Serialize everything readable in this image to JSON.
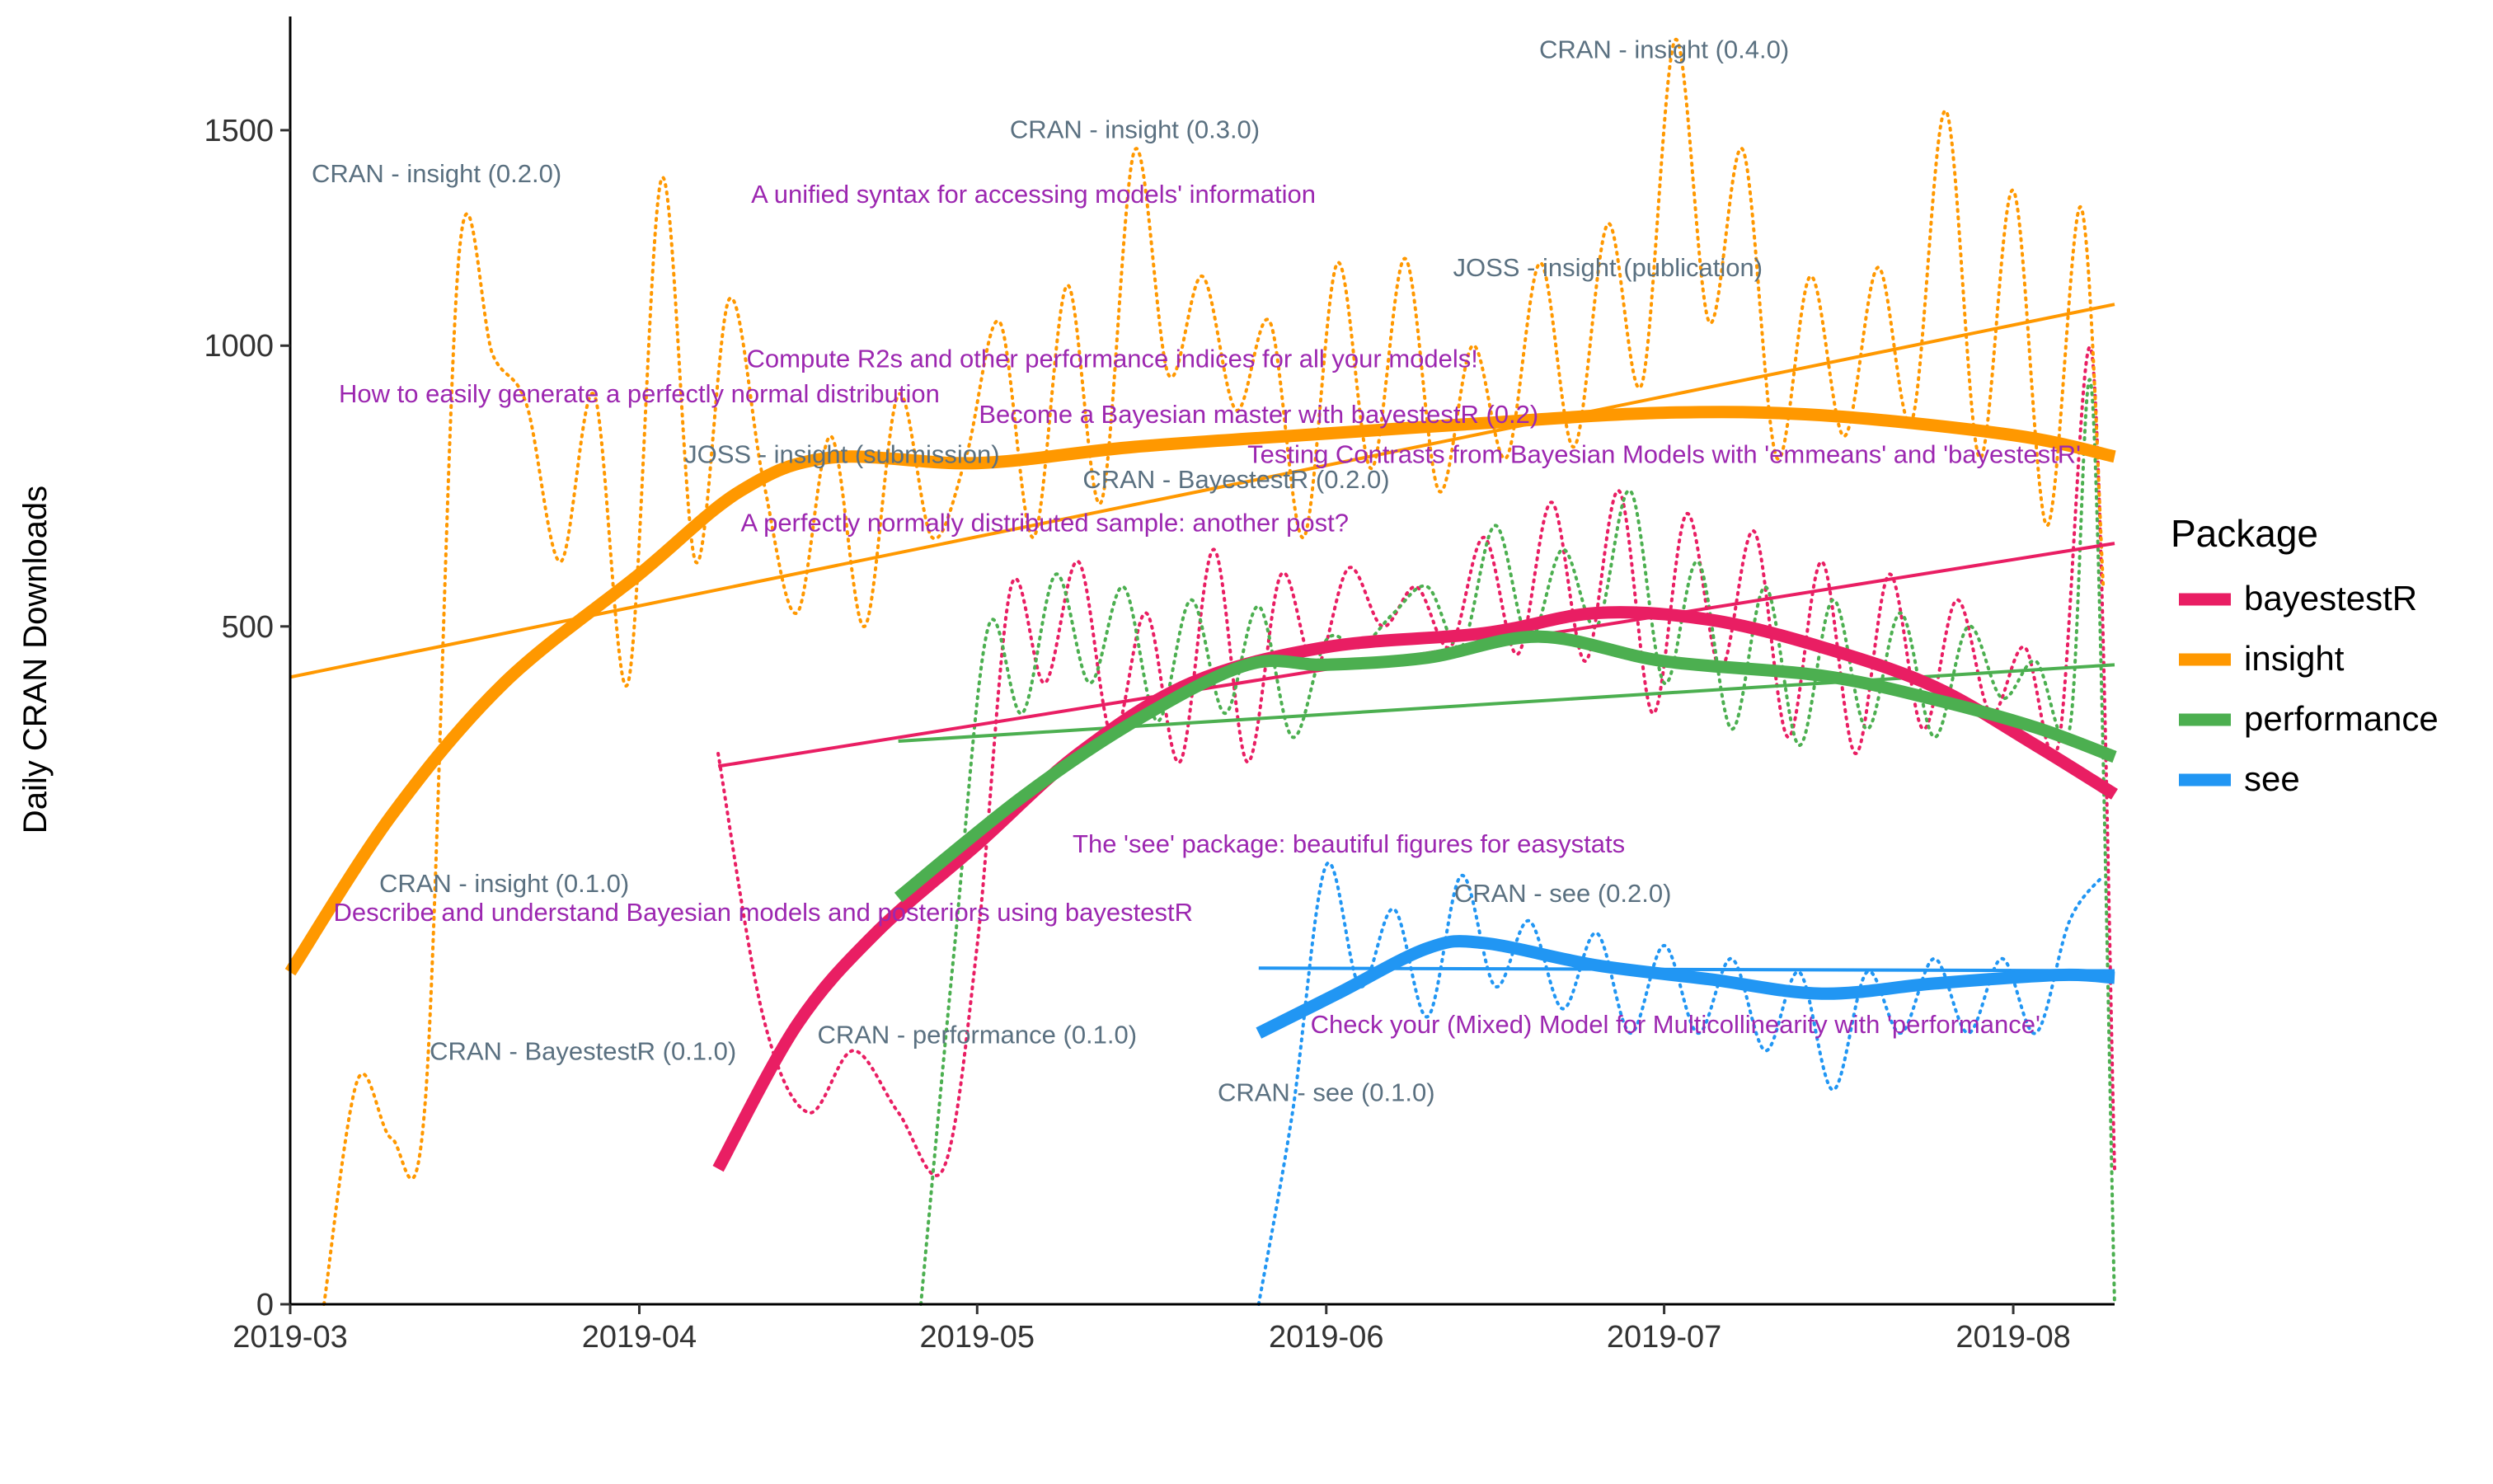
{
  "chart_data": {
    "type": "line",
    "title": "",
    "xlabel": "",
    "ylabel": "Daily CRAN Downloads",
    "x_axis": {
      "type": "date",
      "ticks": [
        "2019-03-01",
        "2019-04-01",
        "2019-05-01",
        "2019-06-01",
        "2019-07-01",
        "2019-08-01"
      ],
      "tick_labels": [
        "2019-03",
        "2019-04",
        "2019-05",
        "2019-06",
        "2019-07",
        "2019-08"
      ],
      "range": [
        "2019-03-01",
        "2019-08-10"
      ]
    },
    "y_axis": {
      "scale": "sqrt",
      "ticks": [
        0,
        500,
        1000,
        1500
      ],
      "tick_labels": [
        "0",
        "500",
        "1000",
        "1500"
      ],
      "range": [
        0,
        1800
      ]
    },
    "grid": false,
    "legend": {
      "title": "Package",
      "position": "right"
    },
    "series": [
      {
        "name": "bayestestR",
        "color": "#E91E63",
        "raw": [
          [
            "2019-04-08",
            330
          ],
          [
            "2019-04-12",
            90
          ],
          [
            "2019-04-16",
            40
          ],
          [
            "2019-04-20",
            70
          ],
          [
            "2019-04-24",
            40
          ],
          [
            "2019-04-28",
            20
          ],
          [
            "2019-05-01",
            140
          ],
          [
            "2019-05-04",
            560
          ],
          [
            "2019-05-07",
            420
          ],
          [
            "2019-05-10",
            600
          ],
          [
            "2019-05-13",
            350
          ],
          [
            "2019-05-16",
            520
          ],
          [
            "2019-05-19",
            320
          ],
          [
            "2019-05-22",
            620
          ],
          [
            "2019-05-25",
            320
          ],
          [
            "2019-05-28",
            580
          ],
          [
            "2019-05-31",
            440
          ],
          [
            "2019-06-03",
            590
          ],
          [
            "2019-06-06",
            500
          ],
          [
            "2019-06-09",
            560
          ],
          [
            "2019-06-12",
            470
          ],
          [
            "2019-06-15",
            640
          ],
          [
            "2019-06-18",
            460
          ],
          [
            "2019-06-21",
            700
          ],
          [
            "2019-06-24",
            450
          ],
          [
            "2019-06-27",
            720
          ],
          [
            "2019-06-30",
            380
          ],
          [
            "2019-07-03",
            680
          ],
          [
            "2019-07-06",
            440
          ],
          [
            "2019-07-09",
            650
          ],
          [
            "2019-07-12",
            350
          ],
          [
            "2019-07-15",
            600
          ],
          [
            "2019-07-18",
            330
          ],
          [
            "2019-07-21",
            580
          ],
          [
            "2019-07-24",
            360
          ],
          [
            "2019-07-27",
            540
          ],
          [
            "2019-07-30",
            380
          ],
          [
            "2019-08-02",
            470
          ],
          [
            "2019-08-05",
            340
          ],
          [
            "2019-08-08",
            980
          ],
          [
            "2019-08-10",
            20
          ]
        ],
        "smooth": [
          [
            "2019-04-08",
            20
          ],
          [
            "2019-04-15",
            85
          ],
          [
            "2019-04-22",
            150
          ],
          [
            "2019-05-01",
            230
          ],
          [
            "2019-05-10",
            330
          ],
          [
            "2019-05-20",
            420
          ],
          [
            "2019-06-01",
            470
          ],
          [
            "2019-06-15",
            490
          ],
          [
            "2019-06-25",
            520
          ],
          [
            "2019-07-05",
            510
          ],
          [
            "2019-07-15",
            470
          ],
          [
            "2019-07-25",
            415
          ],
          [
            "2019-08-03",
            340
          ],
          [
            "2019-08-10",
            283
          ]
        ],
        "trend": [
          [
            "2019-04-08",
            315
          ],
          [
            "2019-08-10",
            630
          ]
        ]
      },
      {
        "name": "insight",
        "color": "#FF9800",
        "raw": [
          [
            "2019-03-04",
            0
          ],
          [
            "2019-03-07",
            55
          ],
          [
            "2019-03-10",
            30
          ],
          [
            "2019-03-13",
            45
          ],
          [
            "2019-03-16",
            1200
          ],
          [
            "2019-03-19",
            980
          ],
          [
            "2019-03-22",
            880
          ],
          [
            "2019-03-25",
            600
          ],
          [
            "2019-03-28",
            900
          ],
          [
            "2019-03-31",
            420
          ],
          [
            "2019-04-03",
            1380
          ],
          [
            "2019-04-06",
            600
          ],
          [
            "2019-04-09",
            1100
          ],
          [
            "2019-04-12",
            740
          ],
          [
            "2019-04-15",
            520
          ],
          [
            "2019-04-18",
            820
          ],
          [
            "2019-04-21",
            500
          ],
          [
            "2019-04-24",
            900
          ],
          [
            "2019-04-27",
            640
          ],
          [
            "2019-04-30",
            780
          ],
          [
            "2019-05-03",
            1050
          ],
          [
            "2019-05-06",
            640
          ],
          [
            "2019-05-09",
            1130
          ],
          [
            "2019-05-12",
            700
          ],
          [
            "2019-05-15",
            1450
          ],
          [
            "2019-05-18",
            940
          ],
          [
            "2019-05-21",
            1150
          ],
          [
            "2019-05-24",
            870
          ],
          [
            "2019-05-27",
            1050
          ],
          [
            "2019-05-30",
            640
          ],
          [
            "2019-06-02",
            1180
          ],
          [
            "2019-06-05",
            760
          ],
          [
            "2019-06-08",
            1190
          ],
          [
            "2019-06-11",
            720
          ],
          [
            "2019-06-14",
            1000
          ],
          [
            "2019-06-17",
            780
          ],
          [
            "2019-06-20",
            1180
          ],
          [
            "2019-06-23",
            800
          ],
          [
            "2019-06-26",
            1270
          ],
          [
            "2019-06-29",
            920
          ],
          [
            "2019-07-02",
            1740
          ],
          [
            "2019-07-05",
            1050
          ],
          [
            "2019-07-08",
            1450
          ],
          [
            "2019-07-11",
            780
          ],
          [
            "2019-07-14",
            1150
          ],
          [
            "2019-07-17",
            820
          ],
          [
            "2019-07-20",
            1170
          ],
          [
            "2019-07-23",
            850
          ],
          [
            "2019-07-26",
            1550
          ],
          [
            "2019-07-29",
            780
          ],
          [
            "2019-08-01",
            1350
          ],
          [
            "2019-08-04",
            660
          ],
          [
            "2019-08-07",
            1310
          ],
          [
            "2019-08-09",
            560
          ]
        ],
        "smooth": [
          [
            "2019-03-01",
            120
          ],
          [
            "2019-03-10",
            260
          ],
          [
            "2019-03-20",
            420
          ],
          [
            "2019-04-01",
            580
          ],
          [
            "2019-04-10",
            720
          ],
          [
            "2019-04-18",
            780
          ],
          [
            "2019-05-01",
            770
          ],
          [
            "2019-05-15",
            800
          ],
          [
            "2019-06-01",
            825
          ],
          [
            "2019-06-15",
            845
          ],
          [
            "2019-07-01",
            865
          ],
          [
            "2019-07-15",
            860
          ],
          [
            "2019-08-01",
            822
          ],
          [
            "2019-08-10",
            782
          ]
        ],
        "trend": [
          [
            "2019-03-01",
            428
          ],
          [
            "2019-08-10",
            1088
          ]
        ]
      },
      {
        "name": "performance",
        "color": "#4CAF50",
        "raw": [
          [
            "2019-04-26",
            0
          ],
          [
            "2019-04-29",
            140
          ],
          [
            "2019-05-02",
            500
          ],
          [
            "2019-05-05",
            380
          ],
          [
            "2019-05-08",
            580
          ],
          [
            "2019-05-11",
            420
          ],
          [
            "2019-05-14",
            560
          ],
          [
            "2019-05-17",
            370
          ],
          [
            "2019-05-20",
            540
          ],
          [
            "2019-05-23",
            380
          ],
          [
            "2019-05-26",
            530
          ],
          [
            "2019-05-29",
            350
          ],
          [
            "2019-06-01",
            480
          ],
          [
            "2019-06-04",
            470
          ],
          [
            "2019-06-07",
            520
          ],
          [
            "2019-06-10",
            560
          ],
          [
            "2019-06-13",
            470
          ],
          [
            "2019-06-16",
            660
          ],
          [
            "2019-06-19",
            480
          ],
          [
            "2019-06-22",
            620
          ],
          [
            "2019-06-25",
            500
          ],
          [
            "2019-06-28",
            720
          ],
          [
            "2019-07-01",
            420
          ],
          [
            "2019-07-04",
            600
          ],
          [
            "2019-07-07",
            360
          ],
          [
            "2019-07-10",
            560
          ],
          [
            "2019-07-13",
            340
          ],
          [
            "2019-07-16",
            540
          ],
          [
            "2019-07-19",
            360
          ],
          [
            "2019-07-22",
            520
          ],
          [
            "2019-07-25",
            350
          ],
          [
            "2019-07-28",
            500
          ],
          [
            "2019-07-31",
            400
          ],
          [
            "2019-08-03",
            450
          ],
          [
            "2019-08-06",
            360
          ],
          [
            "2019-08-08",
            900
          ],
          [
            "2019-08-10",
            0
          ]
        ],
        "smooth": [
          [
            "2019-04-24",
            180
          ],
          [
            "2019-05-05",
            280
          ],
          [
            "2019-05-15",
            370
          ],
          [
            "2019-05-25",
            445
          ],
          [
            "2019-06-01",
            445
          ],
          [
            "2019-06-10",
            455
          ],
          [
            "2019-06-20",
            485
          ],
          [
            "2019-07-01",
            450
          ],
          [
            "2019-07-15",
            430
          ],
          [
            "2019-07-25",
            398
          ],
          [
            "2019-08-03",
            362
          ],
          [
            "2019-08-10",
            326
          ]
        ],
        "trend": [
          [
            "2019-04-24",
            345
          ],
          [
            "2019-08-10",
            445
          ]
        ]
      },
      {
        "name": "see",
        "color": "#2196F3",
        "raw": [
          [
            "2019-05-26",
            0
          ],
          [
            "2019-05-29",
            40
          ],
          [
            "2019-06-01",
            210
          ],
          [
            "2019-06-04",
            110
          ],
          [
            "2019-06-07",
            170
          ],
          [
            "2019-06-10",
            90
          ],
          [
            "2019-06-13",
            200
          ],
          [
            "2019-06-16",
            110
          ],
          [
            "2019-06-19",
            160
          ],
          [
            "2019-06-22",
            95
          ],
          [
            "2019-06-25",
            150
          ],
          [
            "2019-06-28",
            80
          ],
          [
            "2019-07-01",
            140
          ],
          [
            "2019-07-04",
            80
          ],
          [
            "2019-07-07",
            130
          ],
          [
            "2019-07-10",
            70
          ],
          [
            "2019-07-13",
            120
          ],
          [
            "2019-07-16",
            50
          ],
          [
            "2019-07-19",
            120
          ],
          [
            "2019-07-22",
            80
          ],
          [
            "2019-07-25",
            130
          ],
          [
            "2019-07-28",
            80
          ],
          [
            "2019-07-31",
            130
          ],
          [
            "2019-08-03",
            80
          ],
          [
            "2019-08-06",
            160
          ],
          [
            "2019-08-09",
            200
          ]
        ],
        "smooth": [
          [
            "2019-05-26",
            80
          ],
          [
            "2019-06-02",
            105
          ],
          [
            "2019-06-10",
            138
          ],
          [
            "2019-06-15",
            142
          ],
          [
            "2019-06-25",
            125
          ],
          [
            "2019-07-05",
            115
          ],
          [
            "2019-07-15",
            105
          ],
          [
            "2019-07-25",
            112
          ],
          [
            "2019-08-05",
            118
          ],
          [
            "2019-08-10",
            116
          ]
        ],
        "trend": [
          [
            "2019-05-26",
            123
          ],
          [
            "2019-08-10",
            121
          ]
        ]
      }
    ],
    "annotations": [
      {
        "text": "CRAN - insight (0.4.0)",
        "kind": "release",
        "color": "#5A7080",
        "x": "2019-07-01",
        "y": 1690
      },
      {
        "text": "CRAN - insight (0.3.0)",
        "kind": "release",
        "color": "#5A7080",
        "x": "2019-05-15",
        "y": 1480
      },
      {
        "text": "CRAN - insight (0.2.0)",
        "kind": "release",
        "color": "#5A7080",
        "x": "2019-03-14",
        "y": 1370
      },
      {
        "text": "A unified syntax for accessing models' information",
        "kind": "post",
        "color": "#9C27B0",
        "x": "2019-05-06",
        "y": 1320
      },
      {
        "text": "JOSS - insight (publication)",
        "kind": "release",
        "color": "#5A7080",
        "x": "2019-06-26",
        "y": 1150
      },
      {
        "text": "Compute R2s and other performance indices for all your models!",
        "kind": "post",
        "color": "#9C27B0",
        "x": "2019-05-13",
        "y": 955
      },
      {
        "text": "How to easily generate a perfectly normal distribution",
        "kind": "post",
        "color": "#9C27B0",
        "x": "2019-04-01",
        "y": 885
      },
      {
        "text": "Become a Bayesian master with bayestestR (0.2)",
        "kind": "post",
        "color": "#9C27B0",
        "x": "2019-05-26",
        "y": 845
      },
      {
        "text": "JOSS - insight (submission)",
        "kind": "release",
        "color": "#5A7080",
        "x": "2019-04-19",
        "y": 770
      },
      {
        "text": "Testing Contrasts from Bayesian Models with 'emmeans' and 'bayestestR'",
        "kind": "post",
        "color": "#9C27B0",
        "x": "2019-07-01",
        "y": 770
      },
      {
        "text": "CRAN - BayestestR (0.2.0)",
        "kind": "release",
        "color": "#5A7080",
        "x": "2019-05-24",
        "y": 725
      },
      {
        "text": "A perfectly normally distributed sample: another post?",
        "kind": "post",
        "color": "#9C27B0",
        "x": "2019-05-07",
        "y": 650
      },
      {
        "text": "CRAN - insight (0.1.0)",
        "kind": "release",
        "color": "#5A7080",
        "x": "2019-03-20",
        "y": 185
      },
      {
        "text": "The 'see' package: beautiful figures for easystats",
        "kind": "post",
        "color": "#9C27B0",
        "x": "2019-06-03",
        "y": 222
      },
      {
        "text": "CRAN - see (0.2.0)",
        "kind": "release",
        "color": "#5A7080",
        "x": "2019-06-22",
        "y": 176
      },
      {
        "text": "Describe and understand Bayesian models and posteriors using bayestestR",
        "kind": "post",
        "color": "#9C27B0",
        "x": "2019-04-12",
        "y": 160
      },
      {
        "text": "CRAN - performance (0.1.0)",
        "kind": "release",
        "color": "#5A7080",
        "x": "2019-05-01",
        "y": 74
      },
      {
        "text": "CRAN - BayestestR (0.1.0)",
        "kind": "release",
        "color": "#5A7080",
        "x": "2019-03-27",
        "y": 65
      },
      {
        "text": "Check your (Mixed) Model for Multicollinearity with 'performance'",
        "kind": "post",
        "color": "#9C27B0",
        "x": "2019-07-02",
        "y": 80
      },
      {
        "text": "CRAN - see (0.1.0)",
        "kind": "release",
        "color": "#5A7080",
        "x": "2019-06-01",
        "y": 45
      }
    ]
  }
}
